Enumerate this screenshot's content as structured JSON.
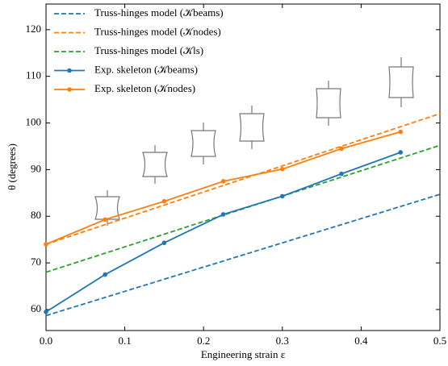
{
  "chart_data": {
    "type": "line",
    "x_label": "Engineering strain ε",
    "y_label": "θ (degrees)",
    "xlim": [
      0,
      0.5
    ],
    "ylim": [
      55.5,
      125.5
    ],
    "xticks": [
      {
        "value": 0,
        "label": "0.0"
      },
      0.1,
      0.2,
      0.3,
      0.4,
      0.5
    ],
    "yticks": [
      60,
      70,
      80,
      90,
      100,
      110,
      120
    ],
    "legend": "upper left",
    "series": [
      {
        "name": "Truss-hinges model (𝒦beams)",
        "color": "#1f77b4",
        "style": "dashed",
        "x": [
          0,
          0.5
        ],
        "values": [
          58.7,
          84.7
        ]
      },
      {
        "name": "Truss-hinges model (𝒦nodes)",
        "color": "#ff7f0e",
        "style": "dashed",
        "x": [
          0,
          0.5
        ],
        "values": [
          74,
          102
        ]
      },
      {
        "name": "Truss-hinges model (𝒦ls)",
        "color": "#2ca02c",
        "style": "dashed",
        "x": [
          0,
          0.5
        ],
        "values": [
          68,
          95.2
        ]
      },
      {
        "name": "Exp. skeleton (𝒦beams)",
        "color": "#1f77b4",
        "style": "solid",
        "marker": true,
        "x": [
          0,
          0.075,
          0.15,
          0.225,
          0.3,
          0.375,
          0.45
        ],
        "values": [
          59.5,
          67.5,
          74.3,
          80.4,
          84.3,
          89.1,
          93.7
        ]
      },
      {
        "name": "Exp. skeleton (𝒦nodes)",
        "color": "#ff7f0e",
        "style": "solid",
        "marker": true,
        "x": [
          0,
          0.075,
          0.15,
          0.225,
          0.3,
          0.375,
          0.45
        ],
        "values": [
          74,
          79.3,
          83.2,
          87.5,
          90.1,
          94.5,
          98.1
        ]
      }
    ]
  }
}
